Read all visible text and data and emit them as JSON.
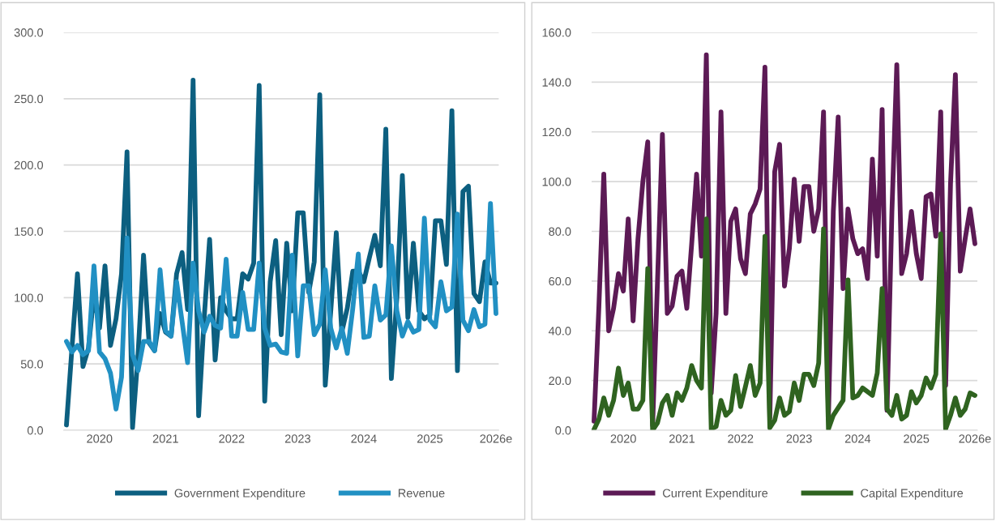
{
  "chart_data": [
    {
      "type": "line",
      "categories": [
        null,
        null,
        null,
        null,
        null,
        null,
        "2020",
        null,
        null,
        null,
        null,
        null,
        null,
        null,
        null,
        null,
        null,
        null,
        "2021",
        null,
        null,
        null,
        null,
        null,
        null,
        null,
        null,
        null,
        null,
        null,
        "2022",
        null,
        null,
        null,
        null,
        null,
        null,
        null,
        null,
        null,
        null,
        null,
        "2023",
        null,
        null,
        null,
        null,
        null,
        null,
        null,
        null,
        null,
        null,
        null,
        "2024",
        null,
        null,
        null,
        null,
        null,
        null,
        null,
        null,
        null,
        null,
        null,
        "2025",
        null,
        null,
        null,
        null,
        null,
        null,
        null,
        null,
        null,
        null,
        null,
        "2026e"
      ],
      "series": [
        {
          "name": "Government Expenditure",
          "color": "#0c5f80",
          "values": [
            4,
            62,
            118,
            48,
            62,
            103,
            77,
            124,
            64,
            84,
            118,
            210,
            2,
            57,
            132,
            66,
            60,
            88,
            74,
            71,
            118,
            134,
            91,
            264,
            11,
            84,
            144,
            53,
            100,
            90,
            84,
            84,
            118,
            114,
            126,
            260,
            22,
            112,
            143,
            72,
            141,
            90,
            164,
            164,
            104,
            127,
            253,
            34,
            90,
            149,
            74,
            92,
            120,
            120,
            112,
            130,
            147,
            124,
            227,
            39,
            100,
            192,
            85,
            141,
            90,
            84,
            87,
            158,
            158,
            125,
            241,
            45,
            180,
            184,
            103,
            97,
            127,
            111,
            111
          ]
        },
        {
          "name": "Revenue",
          "color": "#2190c3",
          "values": [
            67,
            59,
            64,
            57,
            60,
            124,
            59,
            54,
            43,
            16,
            40,
            145,
            57,
            45,
            67,
            67,
            60,
            121,
            75,
            71,
            112,
            82,
            51,
            126,
            90,
            74,
            86,
            79,
            77,
            129,
            71,
            71,
            104,
            76,
            76,
            126,
            77,
            64,
            65,
            59,
            58,
            132,
            56,
            109,
            109,
            72,
            80,
            121,
            77,
            62,
            77,
            58,
            92,
            133,
            70,
            71,
            109,
            83,
            87,
            139,
            90,
            71,
            82,
            74,
            76,
            160,
            83,
            78,
            112,
            90,
            93,
            163,
            83,
            75,
            91,
            78,
            80,
            171,
            88
          ]
        }
      ],
      "ylim": [
        0,
        300
      ],
      "yticks": [
        {
          "value": 0,
          "label": "0.0"
        },
        {
          "value": 50,
          "label": "50.0"
        },
        {
          "value": 100,
          "label": "100.0"
        },
        {
          "value": 150,
          "label": "150.0"
        },
        {
          "value": 200,
          "label": "200.0"
        },
        {
          "value": 250,
          "label": "250.0"
        },
        {
          "value": 300,
          "label": "300.0"
        }
      ],
      "grid": "y",
      "legend": "bottom"
    },
    {
      "type": "line",
      "categories": [
        null,
        null,
        null,
        null,
        null,
        null,
        "2020",
        null,
        null,
        null,
        null,
        null,
        null,
        null,
        null,
        null,
        null,
        null,
        "2021",
        null,
        null,
        null,
        null,
        null,
        null,
        null,
        null,
        null,
        null,
        null,
        "2022",
        null,
        null,
        null,
        null,
        null,
        null,
        null,
        null,
        null,
        null,
        null,
        "2023",
        null,
        null,
        null,
        null,
        null,
        null,
        null,
        null,
        null,
        null,
        null,
        "2024",
        null,
        null,
        null,
        null,
        null,
        null,
        null,
        null,
        null,
        null,
        null,
        "2025",
        null,
        null,
        null,
        null,
        null,
        null,
        null,
        null,
        null,
        null,
        null,
        "2026e"
      ],
      "series": [
        {
          "name": "Current Expenditure",
          "color": "#5c1a55",
          "values": [
            3.6,
            50,
            103,
            40,
            49,
            63,
            56,
            85,
            44,
            77,
            100,
            116,
            2,
            60,
            119,
            47,
            50,
            62,
            64,
            49,
            75,
            103,
            70,
            151,
            15,
            47,
            128,
            47,
            84,
            89,
            69,
            63,
            87,
            91,
            97,
            146,
            5,
            104,
            115,
            58,
            73,
            101,
            76,
            98,
            98,
            80,
            89,
            128,
            5,
            88,
            126,
            57,
            89,
            77,
            71,
            73,
            61,
            109,
            70,
            129,
            8,
            88,
            147,
            63,
            71,
            88,
            71,
            61,
            94,
            95,
            78,
            128,
            18,
            99,
            143,
            64,
            77,
            89,
            75
          ]
        },
        {
          "name": "Capital Expenditure",
          "color": "#2f6320",
          "values": [
            0.3,
            4.5,
            13,
            6,
            12,
            25,
            14,
            19,
            8.5,
            8.5,
            12,
            65,
            0,
            3,
            11,
            14,
            6,
            15,
            12,
            17,
            26,
            20,
            17,
            85,
            0.5,
            1.5,
            12,
            6,
            8,
            22,
            9.5,
            17.5,
            26,
            14,
            19,
            78,
            1,
            4,
            13,
            6,
            7.5,
            19,
            12,
            22.5,
            22.5,
            18,
            27,
            81,
            0.5,
            6,
            9,
            12,
            60.5,
            13,
            14,
            17,
            15.5,
            14,
            23,
            57,
            8.5,
            6,
            14,
            4.5,
            6,
            15.5,
            11,
            14,
            21,
            17,
            22.5,
            79,
            0.5,
            6,
            13,
            6,
            8.5,
            15,
            14
          ]
        }
      ],
      "ylim": [
        0,
        160
      ],
      "yticks": [
        {
          "value": 0,
          "label": "0.0"
        },
        {
          "value": 20,
          "label": "20.0"
        },
        {
          "value": 40,
          "label": "40.0"
        },
        {
          "value": 60,
          "label": "60.0"
        },
        {
          "value": 80,
          "label": "80.0"
        },
        {
          "value": 100,
          "label": "100.0"
        },
        {
          "value": 120,
          "label": "120.0"
        },
        {
          "value": 140,
          "label": "140.0"
        },
        {
          "value": 160,
          "label": "160.0"
        }
      ],
      "grid": "y",
      "legend": "bottom"
    }
  ]
}
